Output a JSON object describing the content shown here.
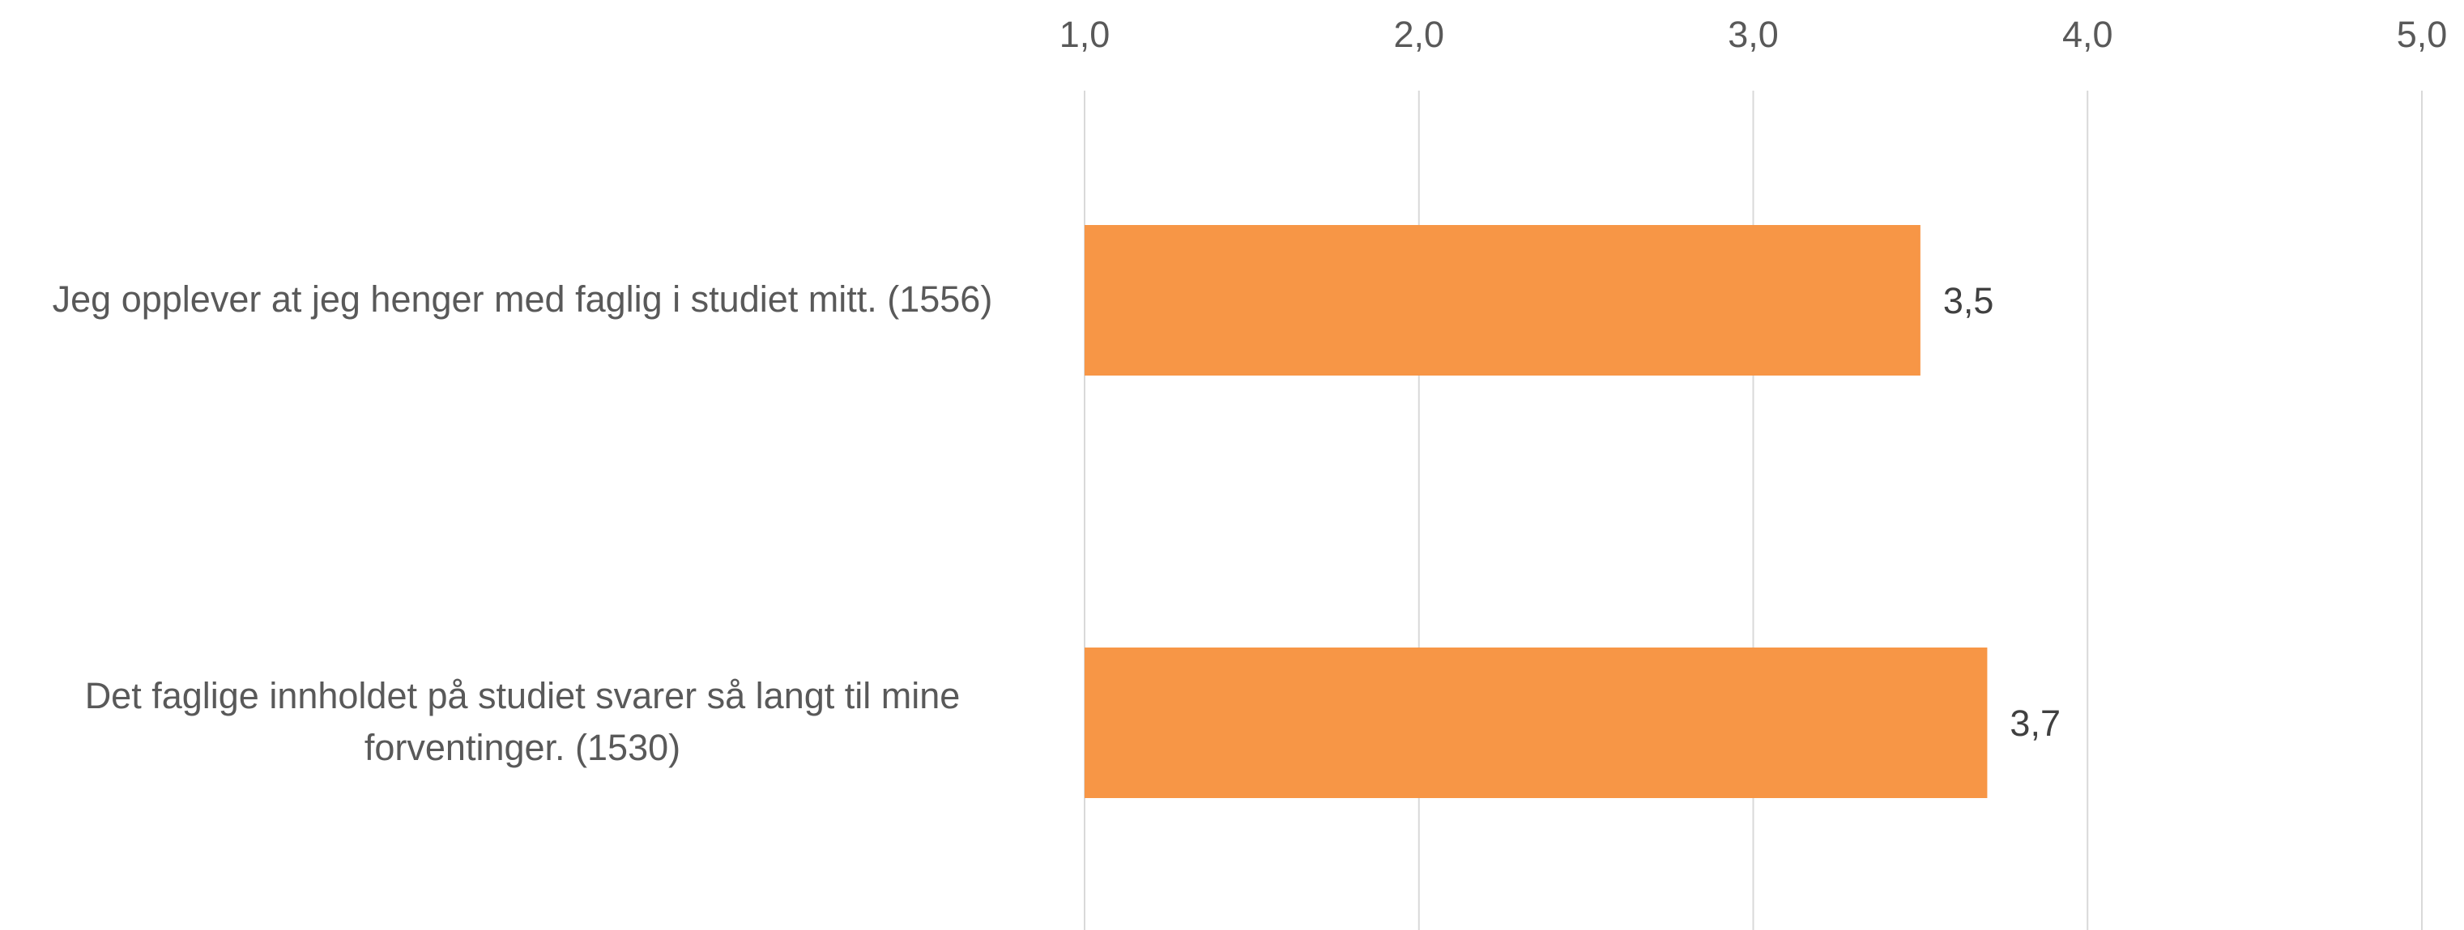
{
  "chart_data": {
    "type": "bar",
    "orientation": "horizontal",
    "categories": [
      "Jeg opplever at jeg henger med faglig i studiet mitt. (1556)",
      "Det faglige innholdet på studiet svarer så langt til mine forventinger. (1530)"
    ],
    "values": [
      3.5,
      3.7
    ],
    "value_labels": [
      "3,5",
      "3,7"
    ],
    "xlim": [
      1.0,
      5.0
    ],
    "x_ticks": [
      "1,0",
      "2,0",
      "3,0",
      "4,0",
      "5,0"
    ],
    "x_tick_values": [
      1.0,
      2.0,
      3.0,
      4.0,
      5.0
    ],
    "x_axis_position": "top",
    "grid": true,
    "legend": "none",
    "title": "",
    "xlabel": "",
    "ylabel": "",
    "colors": {
      "bar": "#F79646",
      "grid": "#D9D9D9",
      "label": "#595959",
      "data_label": "#404040"
    }
  }
}
